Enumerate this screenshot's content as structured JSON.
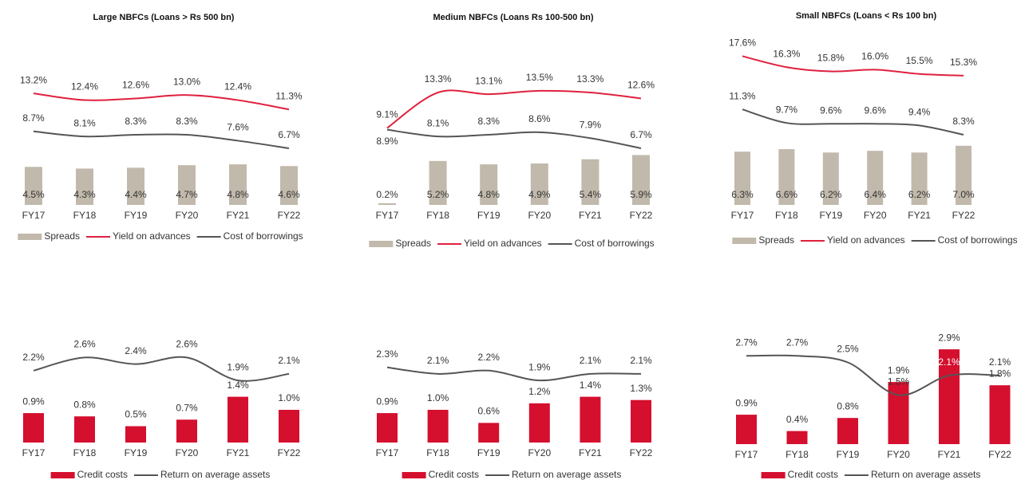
{
  "chart_data": [
    {
      "type": "combo",
      "title": "Large NBFCs (Loans > Rs 500 bn)",
      "categories": [
        "FY17",
        "FY18",
        "FY19",
        "FY20",
        "FY21",
        "FY22"
      ],
      "series": [
        {
          "name": "Spreads",
          "kind": "bar",
          "color": "#c1b9ab",
          "values": [
            4.5,
            4.3,
            4.4,
            4.7,
            4.8,
            4.6
          ],
          "value_labels": [
            "4.5%",
            "4.3%",
            "4.4%",
            "4.7%",
            "4.8%",
            "4.6%"
          ]
        },
        {
          "name": "Yield on advances",
          "kind": "line",
          "color": "#e0203e",
          "values": [
            13.2,
            12.4,
            12.6,
            13.0,
            12.4,
            11.3
          ],
          "value_labels": [
            "13.2%",
            "12.4%",
            "12.6%",
            "13.0%",
            "12.4%",
            "11.3%"
          ]
        },
        {
          "name": "Cost of borrowings",
          "kind": "line",
          "color": "#555555",
          "values": [
            8.7,
            8.1,
            8.3,
            8.3,
            7.6,
            6.7
          ],
          "value_labels": [
            "8.7%",
            "8.1%",
            "8.3%",
            "8.3%",
            "7.6%",
            "6.7%"
          ]
        }
      ]
    },
    {
      "type": "combo",
      "title": "Medium NBFCs (Loans Rs 100-500 bn)",
      "categories": [
        "FY17",
        "FY18",
        "FY19",
        "FY20",
        "FY21",
        "FY22"
      ],
      "series": [
        {
          "name": "Spreads",
          "kind": "bar",
          "color": "#c1b9ab",
          "values": [
            0.2,
            5.2,
            4.8,
            4.9,
            5.4,
            5.9
          ],
          "value_labels": [
            "0.2%",
            "5.2%",
            "4.8%",
            "4.9%",
            "5.4%",
            "5.9%"
          ]
        },
        {
          "name": "Yield on advances",
          "kind": "line",
          "color": "#e0203e",
          "values": [
            9.1,
            13.3,
            13.1,
            13.5,
            13.3,
            12.6
          ],
          "value_labels": [
            "9.1%",
            "13.3%",
            "13.1%",
            "13.5%",
            "13.3%",
            "12.6%"
          ]
        },
        {
          "name": "Cost of borrowings",
          "kind": "line",
          "color": "#555555",
          "values": [
            8.9,
            8.1,
            8.3,
            8.6,
            7.9,
            6.7
          ],
          "value_labels": [
            "8.9%",
            "8.1%",
            "8.3%",
            "8.6%",
            "7.9%",
            "6.7%"
          ]
        }
      ]
    },
    {
      "type": "combo",
      "title": "Small NBFCs (Loans < Rs 100 bn)",
      "categories": [
        "FY17",
        "FY18",
        "FY19",
        "FY20",
        "FY21",
        "FY22"
      ],
      "series": [
        {
          "name": "Spreads",
          "kind": "bar",
          "color": "#c1b9ab",
          "values": [
            6.3,
            6.6,
            6.2,
            6.4,
            6.2,
            7.0
          ],
          "value_labels": [
            "6.3%",
            "6.6%",
            "6.2%",
            "6.4%",
            "6.2%",
            "7.0%"
          ]
        },
        {
          "name": "Yield on advances",
          "kind": "line",
          "color": "#e0203e",
          "values": [
            17.6,
            16.3,
            15.8,
            16.0,
            15.5,
            15.3
          ],
          "value_labels": [
            "17.6%",
            "16.3%",
            "15.8%",
            "16.0%",
            "15.5%",
            "15.3%"
          ]
        },
        {
          "name": "Cost of borrowings",
          "kind": "line",
          "color": "#555555",
          "values": [
            11.3,
            9.7,
            9.6,
            9.6,
            9.4,
            8.3
          ],
          "value_labels": [
            "11.3%",
            "9.7%",
            "9.6%",
            "9.6%",
            "9.4%",
            "8.3%"
          ]
        }
      ]
    },
    {
      "type": "combo",
      "categories": [
        "FY17",
        "FY18",
        "FY19",
        "FY20",
        "FY21",
        "FY22"
      ],
      "series": [
        {
          "name": "Credit costs",
          "kind": "bar",
          "color": "#d50f2e",
          "values": [
            0.9,
            0.8,
            0.5,
            0.7,
            1.4,
            1.0
          ],
          "value_labels": [
            "0.9%",
            "0.8%",
            "0.5%",
            "0.7%",
            "1.4%",
            "1.0%"
          ]
        },
        {
          "name": "Return on average assets",
          "kind": "line",
          "color": "#555555",
          "values": [
            2.2,
            2.6,
            2.4,
            2.6,
            1.9,
            2.1
          ],
          "value_labels": [
            "2.2%",
            "2.6%",
            "2.4%",
            "2.6%",
            "1.9%",
            "2.1%"
          ]
        }
      ]
    },
    {
      "type": "combo",
      "categories": [
        "FY17",
        "FY18",
        "FY19",
        "FY20",
        "FY21",
        "FY22"
      ],
      "series": [
        {
          "name": "Credit costs",
          "kind": "bar",
          "color": "#d50f2e",
          "values": [
            0.9,
            1.0,
            0.6,
            1.2,
            1.4,
            1.3
          ],
          "value_labels": [
            "0.9%",
            "1.0%",
            "0.6%",
            "1.2%",
            "1.4%",
            "1.3%"
          ]
        },
        {
          "name": "Return on average assets",
          "kind": "line",
          "color": "#555555",
          "values": [
            2.3,
            2.1,
            2.2,
            1.9,
            2.1,
            2.1
          ],
          "value_labels": [
            "2.3%",
            "2.1%",
            "2.2%",
            "1.9%",
            "2.1%",
            "2.1%"
          ]
        }
      ]
    },
    {
      "type": "combo",
      "categories": [
        "FY17",
        "FY18",
        "FY19",
        "FY20",
        "FY21",
        "FY22"
      ],
      "series": [
        {
          "name": "Credit costs",
          "kind": "bar",
          "color": "#d50f2e",
          "values": [
            0.9,
            0.4,
            0.8,
            1.9,
            2.9,
            1.8
          ],
          "value_labels": [
            "0.9%",
            "0.4%",
            "0.8%",
            "1.9%",
            "2.9%",
            "1.8%"
          ]
        },
        {
          "name": "Return on average assets",
          "kind": "line",
          "color": "#555555",
          "values": [
            2.7,
            2.7,
            2.5,
            1.5,
            2.1,
            2.1
          ],
          "value_labels": [
            "2.7%",
            "2.7%",
            "2.5%",
            "1.5%",
            "2.1%",
            "2.1%"
          ]
        }
      ]
    }
  ]
}
